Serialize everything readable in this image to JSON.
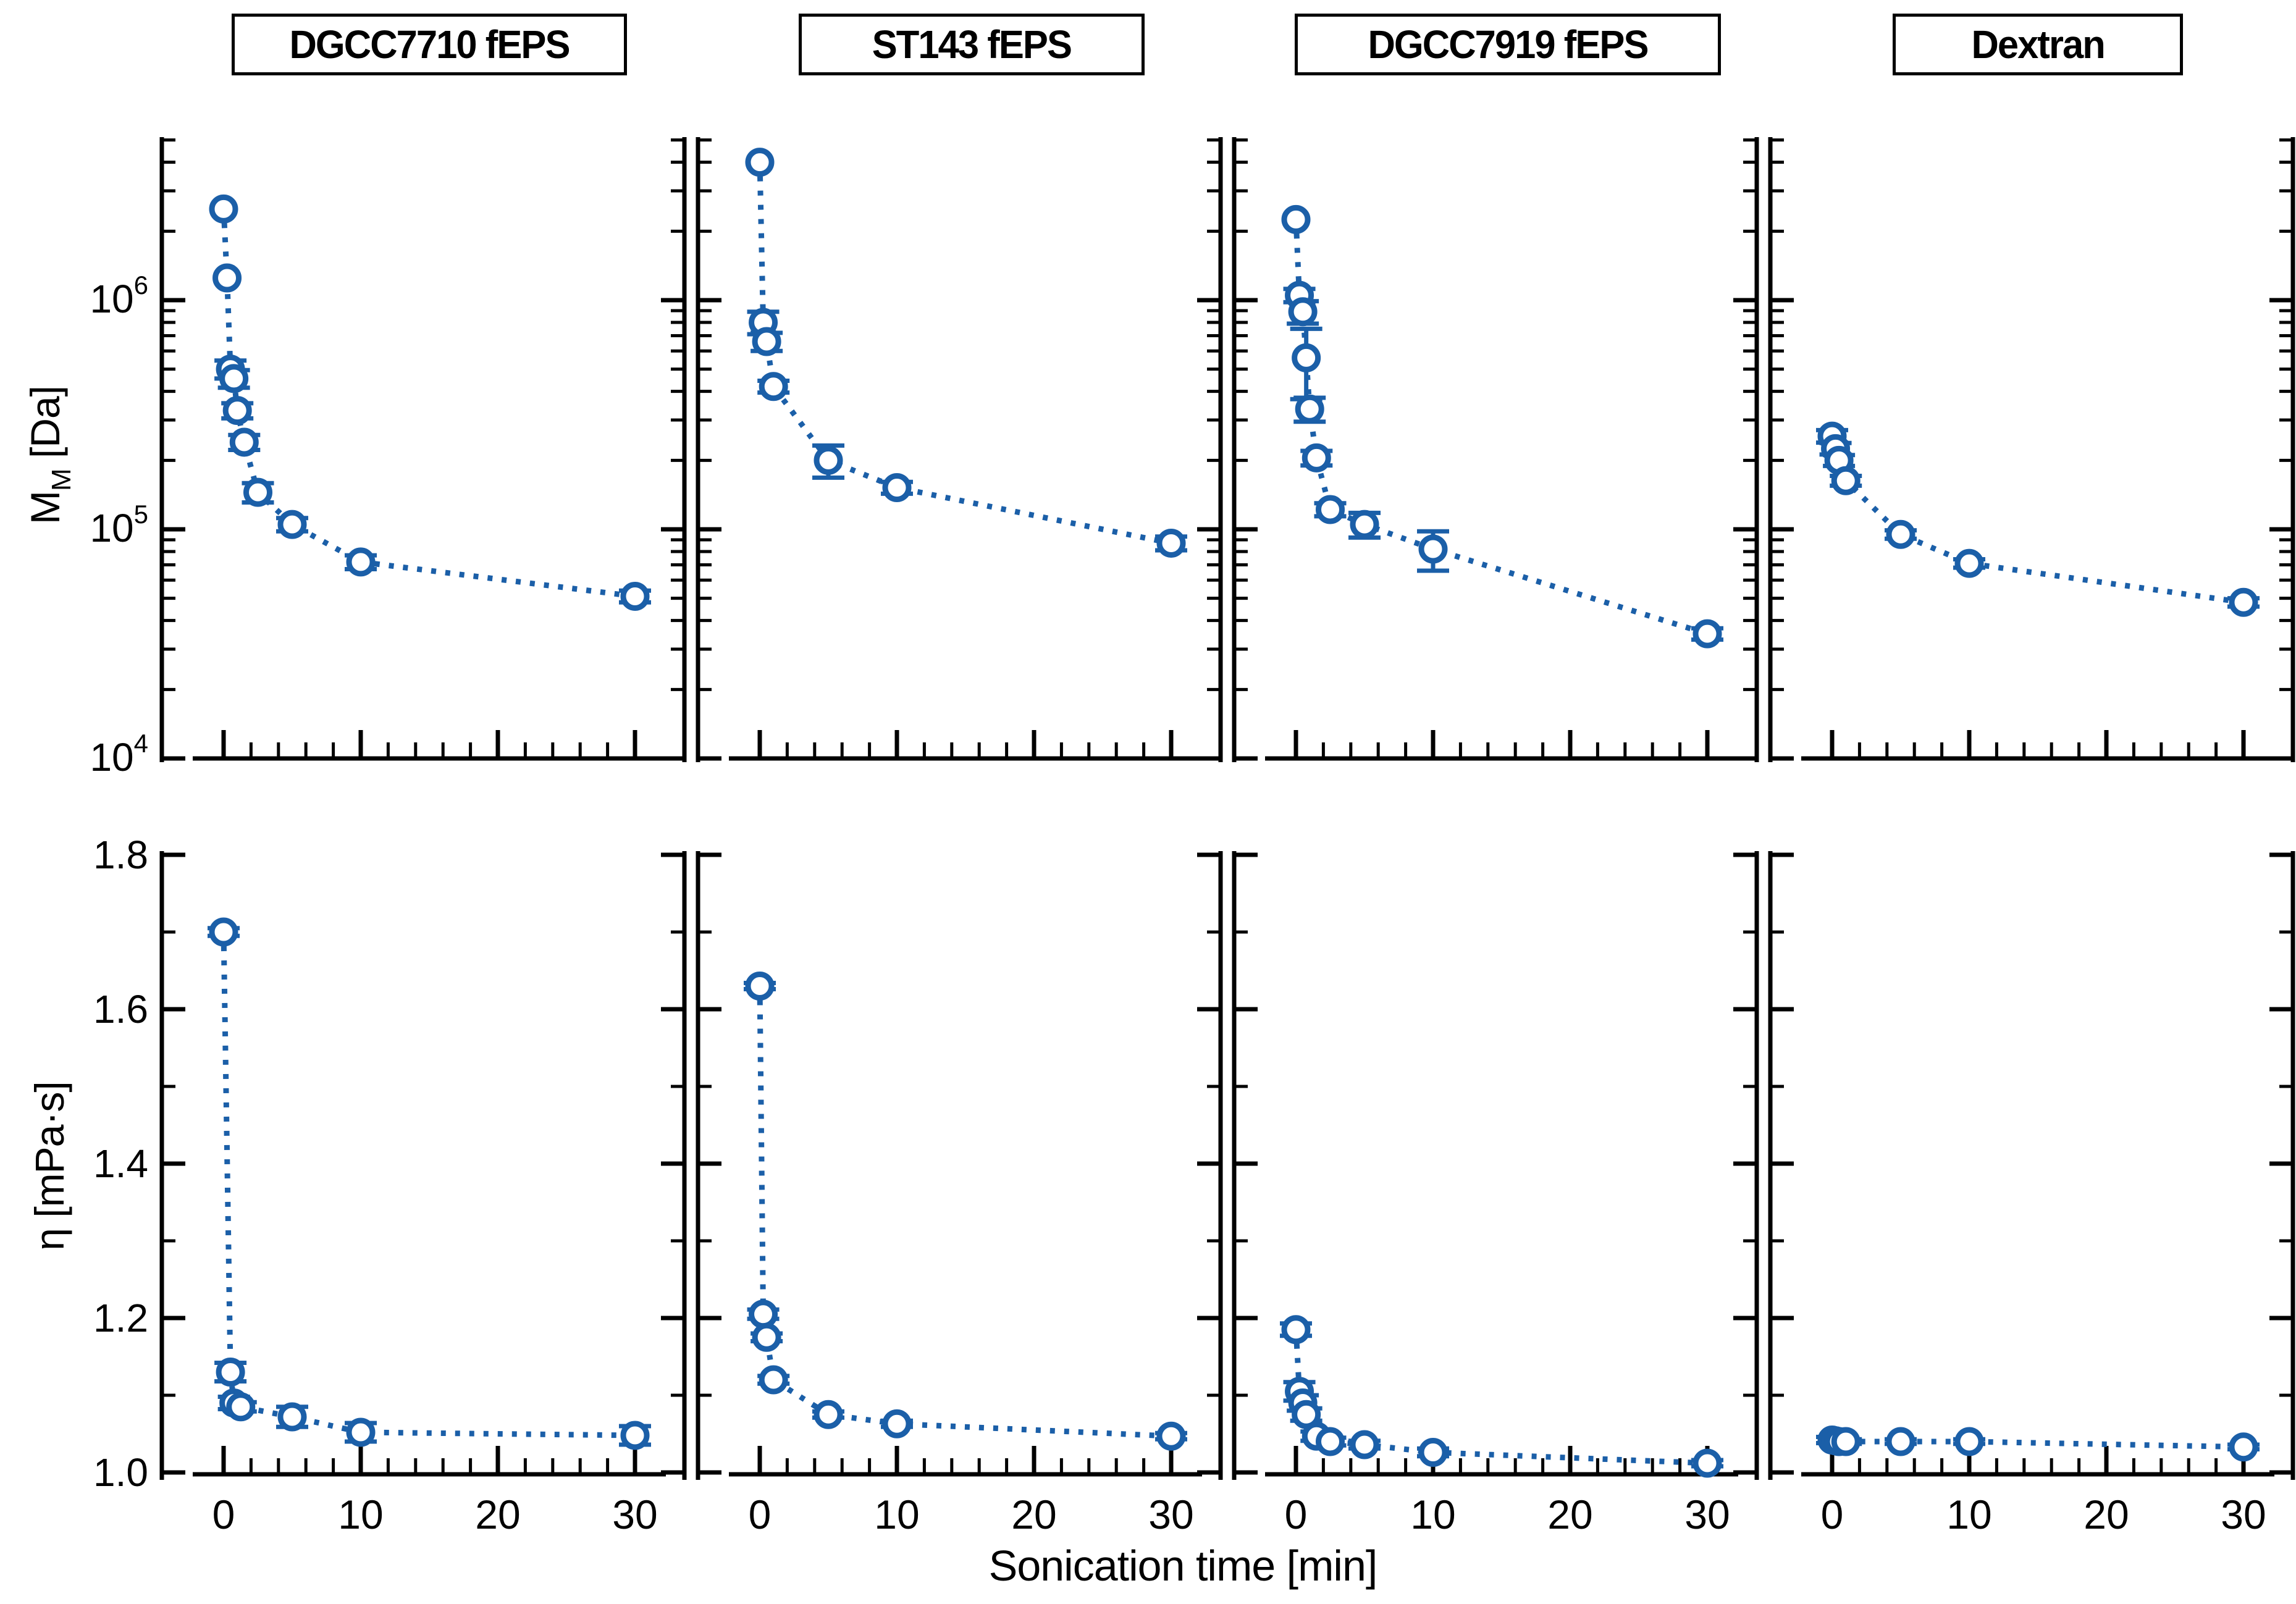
{
  "figure": {
    "x_axis": {
      "label": "Sonication time [min]",
      "major_ticks": [
        0,
        10,
        20,
        30
      ],
      "major_tick_labels": [
        "0",
        "10",
        "20",
        "30"
      ],
      "minor_tick_step": 2,
      "range": [
        -2.2,
        31.8
      ]
    },
    "top_row_y_axis": {
      "label_main": "M",
      "label_sub": "M",
      "label_unit": " [Da]",
      "scale": "log",
      "major_tick_exponents": [
        4,
        5,
        6
      ],
      "major_tick_labels": [
        "10⁴",
        "10⁵",
        "10⁶"
      ],
      "range_exponents": [
        4,
        6.71
      ]
    },
    "bottom_row_y_axis": {
      "label": "η [mPa·s]",
      "scale": "linear",
      "major_ticks": [
        1.0,
        1.2,
        1.4,
        1.6,
        1.8
      ],
      "major_tick_labels": [
        "1.0",
        "1.2",
        "1.4",
        "1.6",
        "1.8"
      ],
      "minor_ticks": [
        1.1,
        1.3,
        1.5,
        1.7
      ],
      "range": [
        1.0,
        1.8
      ]
    },
    "colors": {
      "series_blue": "#1b5fa8",
      "axis_black": "#000000",
      "background": "#ffffff"
    },
    "marker": "open-circle",
    "line_style": "dotted"
  },
  "chart_data": [
    {
      "type": "line",
      "row": 0,
      "col": 0,
      "title": "DGCC7710 fEPS",
      "xlabel": "Sonication time [min]",
      "ylabel": "M_M [Da]",
      "yscale": "log",
      "ylim": [
        10000,
        5200000
      ],
      "xlim": [
        -2.2,
        31.8
      ],
      "x": [
        0,
        0.25,
        0.5,
        0.75,
        1,
        1.5,
        2.5,
        5,
        10,
        30
      ],
      "y": [
        2500000,
        1250000,
        500000,
        455000,
        330000,
        240000,
        145000,
        105000,
        72000,
        51000
      ],
      "yerr": [
        0,
        0,
        45000,
        40000,
        25000,
        18000,
        14000,
        7000,
        5000,
        3000
      ]
    },
    {
      "type": "line",
      "row": 0,
      "col": 1,
      "title": "ST143 fEPS",
      "xlabel": "Sonication time [min]",
      "ylabel": "M_M [Da]",
      "yscale": "log",
      "ylim": [
        10000,
        5200000
      ],
      "xlim": [
        -2.2,
        31.8
      ],
      "x": [
        0,
        0.25,
        0.5,
        1,
        5,
        10,
        30
      ],
      "y": [
        4000000,
        800000,
        660000,
        420000,
        200000,
        152000,
        87000
      ],
      "yerr": [
        0,
        90000,
        60000,
        25000,
        32000,
        9000,
        6000
      ]
    },
    {
      "type": "line",
      "row": 0,
      "col": 2,
      "title": "DGCC7919 fEPS",
      "xlabel": "Sonication time [min]",
      "ylabel": "M_M [Da]",
      "yscale": "log",
      "ylim": [
        10000,
        5200000
      ],
      "xlim": [
        -2.2,
        31.8
      ],
      "x": [
        0,
        0.25,
        0.5,
        0.75,
        1,
        1.5,
        2.5,
        5,
        10,
        30
      ],
      "y": [
        2250000,
        1050000,
        890000,
        560000,
        335000,
        205000,
        122000,
        105000,
        82000,
        35000
      ],
      "yerr": [
        0,
        70000,
        100000,
        190000,
        40000,
        15000,
        8000,
        13000,
        16000,
        2000
      ]
    },
    {
      "type": "line",
      "row": 0,
      "col": 3,
      "title": "Dextran",
      "xlabel": "Sonication time [min]",
      "ylabel": "M_M [Da]",
      "yscale": "log",
      "ylim": [
        10000,
        5200000
      ],
      "xlim": [
        -2.2,
        31.8
      ],
      "x": [
        0,
        0.25,
        0.5,
        1,
        5,
        10,
        30
      ],
      "y": [
        255000,
        225000,
        200000,
        163000,
        95000,
        71000,
        48000
      ],
      "yerr": [
        16000,
        13000,
        11000,
        8000,
        4000,
        3000,
        2000
      ]
    },
    {
      "type": "line",
      "row": 1,
      "col": 0,
      "title": "",
      "xlabel": "Sonication time [min]",
      "ylabel": "η [mPa·s]",
      "yscale": "linear",
      "ylim": [
        1.0,
        1.8
      ],
      "xlim": [
        -2.2,
        31.8
      ],
      "x": [
        0,
        0.5,
        0.75,
        1.25,
        5,
        10,
        30
      ],
      "y": [
        1.7,
        1.13,
        1.09,
        1.085,
        1.072,
        1.052,
        1.048
      ],
      "yerr": [
        0.005,
        0.012,
        0.008,
        0.006,
        0.013,
        0.012,
        0.012
      ]
    },
    {
      "type": "line",
      "row": 1,
      "col": 1,
      "title": "",
      "xlabel": "Sonication time [min]",
      "ylabel": "η [mPa·s]",
      "yscale": "linear",
      "ylim": [
        1.0,
        1.8
      ],
      "xlim": [
        -2.2,
        31.8
      ],
      "x": [
        0,
        0.25,
        0.5,
        1,
        5,
        10,
        30
      ],
      "y": [
        1.63,
        1.205,
        1.175,
        1.12,
        1.075,
        1.063,
        1.047
      ],
      "yerr": [
        0.004,
        0.006,
        0.005,
        0.005,
        0.004,
        0.004,
        0.004
      ]
    },
    {
      "type": "line",
      "row": 1,
      "col": 2,
      "title": "",
      "xlabel": "Sonication time [min]",
      "ylabel": "η [mPa·s]",
      "yscale": "linear",
      "ylim": [
        1.0,
        1.8
      ],
      "xlim": [
        -2.2,
        31.8
      ],
      "x": [
        0,
        0.25,
        0.5,
        0.75,
        1.5,
        2.5,
        5,
        10,
        30
      ],
      "y": [
        1.185,
        1.105,
        1.09,
        1.075,
        1.047,
        1.04,
        1.036,
        1.026,
        1.012
      ],
      "yerr": [
        0.008,
        0.012,
        0.01,
        0.008,
        0.006,
        0.005,
        0.005,
        0.005,
        0.004
      ]
    },
    {
      "type": "line",
      "row": 1,
      "col": 3,
      "title": "",
      "xlabel": "Sonication time [min]",
      "ylabel": "η [mPa·s]",
      "yscale": "linear",
      "ylim": [
        1.0,
        1.8
      ],
      "xlim": [
        -2.2,
        31.8
      ],
      "x": [
        0,
        0.25,
        0.5,
        1,
        5,
        10,
        30
      ],
      "y": [
        1.042,
        1.041,
        1.04,
        1.04,
        1.04,
        1.04,
        1.033
      ],
      "yerr": [
        0.004,
        0.004,
        0.003,
        0.003,
        0.003,
        0.003,
        0.003
      ]
    }
  ]
}
